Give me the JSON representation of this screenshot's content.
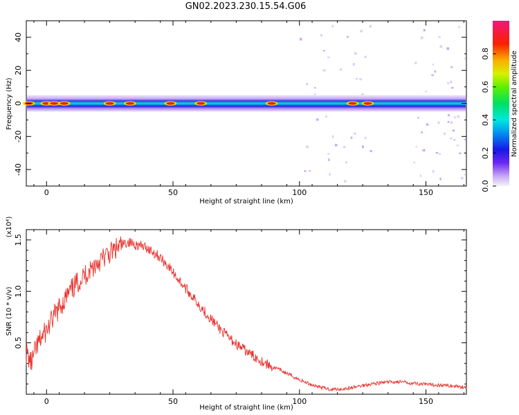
{
  "title": "GN02.2023.230.15.54.G06",
  "chart_data": [
    {
      "type": "heatmap",
      "xlabel": "Height of straight line (km)",
      "ylabel": "Frequency (Hz)",
      "xlim": [
        -8,
        166
      ],
      "ylim": [
        -50,
        50
      ],
      "xticks": [
        "0",
        "50",
        "100",
        "150"
      ],
      "yticks": [
        "-40",
        "-20",
        "0",
        "20",
        "40"
      ],
      "colorbar": {
        "label": "Normalized spectral amplitude",
        "range": [
          0.0,
          1.0
        ],
        "ticks": [
          "0.0",
          "0.2",
          "0.4",
          "0.6",
          "0.8"
        ]
      },
      "band_center_frequency": 0,
      "peak_heights": [
        -7,
        0,
        3,
        7,
        25,
        33,
        49,
        61,
        89,
        121,
        127
      ]
    },
    {
      "type": "line",
      "xlabel": "Height of straight line (km)",
      "ylabel": "SNR (10 * v/v)",
      "y_multiplier": "(x10⁴)",
      "xlim": [
        -8,
        166
      ],
      "ylim": [
        0.0,
        1.6
      ],
      "xticks": [
        "0",
        "50",
        "100",
        "150"
      ],
      "yticks": [
        "0.5",
        "1.0",
        "1.5"
      ],
      "color": "#e8332e",
      "x": [
        -8,
        -6,
        -4,
        -2,
        0,
        4,
        8,
        12,
        16,
        20,
        24,
        28,
        32,
        36,
        40,
        44,
        48,
        52,
        56,
        60,
        64,
        68,
        72,
        76,
        80,
        84,
        88,
        92,
        96,
        100,
        104,
        108,
        112,
        116,
        120,
        124,
        128,
        132,
        136,
        140,
        144,
        148,
        152,
        156,
        160,
        166
      ],
      "y": [
        0.4,
        0.3,
        0.45,
        0.55,
        0.62,
        0.8,
        0.95,
        1.08,
        1.18,
        1.28,
        1.35,
        1.42,
        1.48,
        1.45,
        1.42,
        1.35,
        1.25,
        1.12,
        1.0,
        0.88,
        0.76,
        0.65,
        0.55,
        0.47,
        0.4,
        0.34,
        0.28,
        0.24,
        0.19,
        0.14,
        0.1,
        0.07,
        0.05,
        0.05,
        0.06,
        0.08,
        0.1,
        0.11,
        0.12,
        0.12,
        0.11,
        0.1,
        0.09,
        0.09,
        0.08,
        0.07
      ]
    }
  ]
}
